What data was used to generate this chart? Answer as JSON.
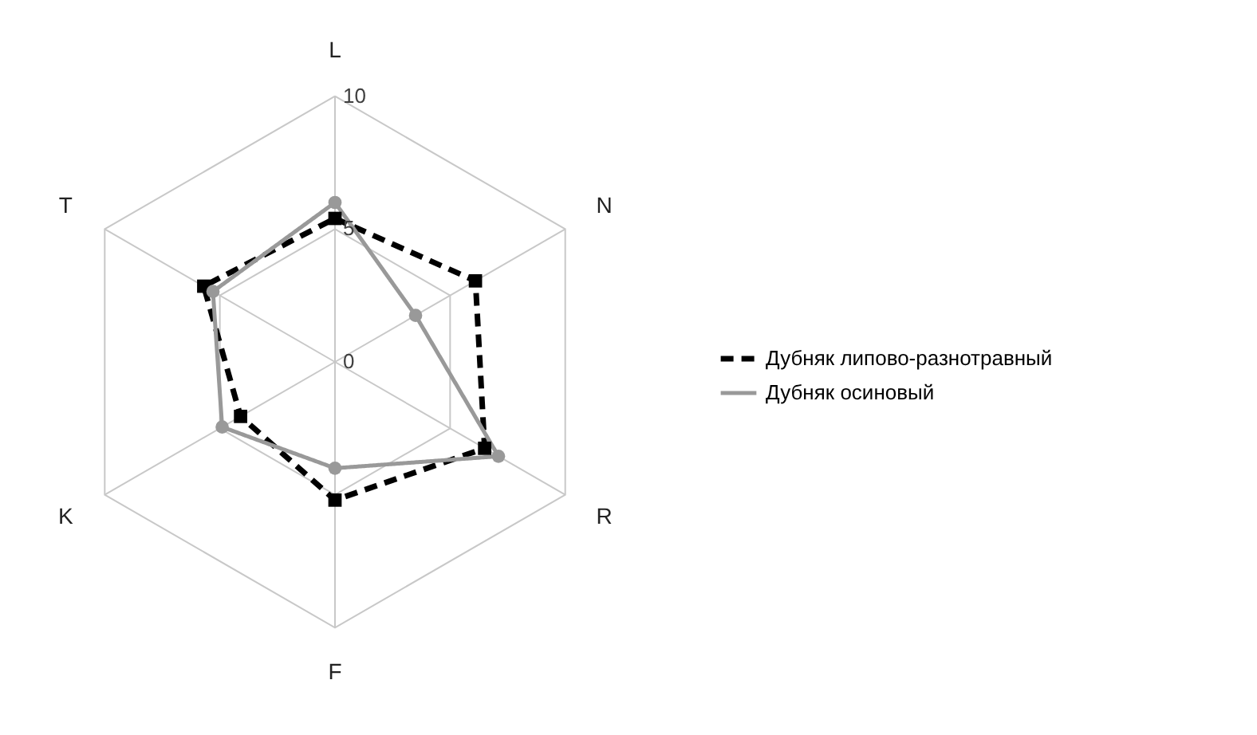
{
  "chart_data": {
    "type": "radar",
    "categories": [
      "L",
      "N",
      "R",
      "F",
      "K",
      "T"
    ],
    "ylim": [
      0,
      10
    ],
    "yticks": [
      0,
      5,
      10
    ],
    "grid": true,
    "legend": "right",
    "series": [
      {
        "name": "Дубняк липово-разнотравный",
        "color": "#000000",
        "values": [
          5.4,
          6.1,
          6.5,
          5.2,
          4.1,
          5.7
        ],
        "marker": "square",
        "line_style": "dashed"
      },
      {
        "name": "Дубняк осиновый",
        "color": "#999999",
        "values": [
          6.0,
          3.5,
          7.1,
          4.0,
          4.9,
          5.3
        ],
        "marker": "circle",
        "line_style": "solid"
      }
    ]
  }
}
